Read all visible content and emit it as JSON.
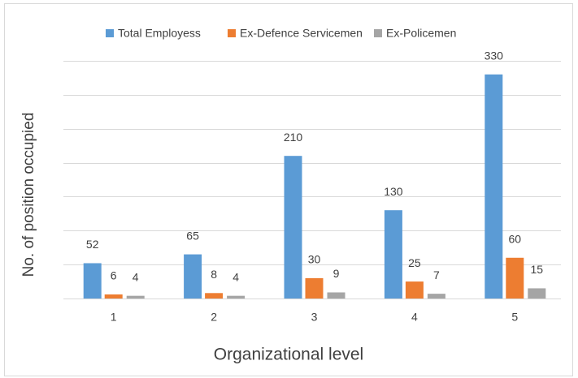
{
  "chart_data": {
    "type": "bar",
    "x_label": "Organizational level",
    "y_label": "No. of position occupied",
    "categories": [
      "1",
      "2",
      "3",
      "4",
      "5"
    ],
    "series": [
      {
        "name": "Total Employess",
        "color": "#5b9bd5",
        "values": [
          52,
          65,
          210,
          130,
          330
        ]
      },
      {
        "name": "Ex-Defence Servicemen",
        "color": "#ed7d31",
        "values": [
          6,
          8,
          30,
          25,
          60
        ]
      },
      {
        "name": "Ex-Policemen",
        "color": "#a5a5a5",
        "values": [
          4,
          4,
          9,
          7,
          15
        ]
      }
    ],
    "ylim": [
      0,
      350
    ],
    "yticks": [
      0,
      50,
      100,
      150,
      200,
      250,
      300,
      350
    ],
    "grid": true,
    "legend": "top"
  }
}
